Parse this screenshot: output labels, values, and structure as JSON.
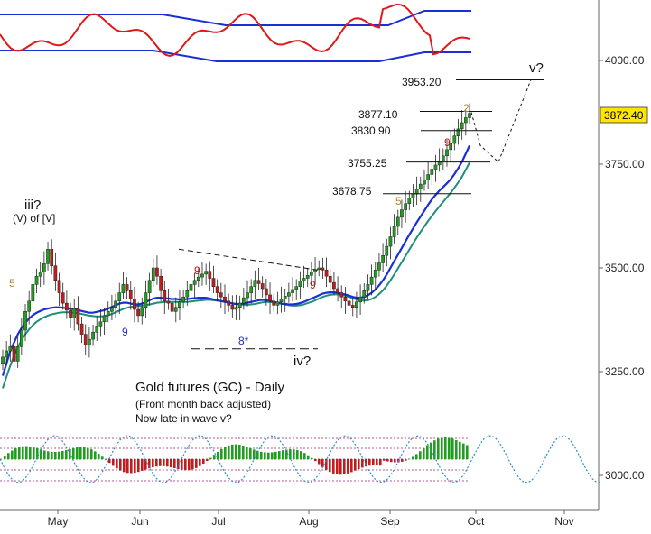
{
  "chart_data": {
    "type": "candlestick",
    "title": "Gold futures (GC) - Daily",
    "subtitle_lines": [
      "(Front month back adjusted)",
      "Now late in wave v?"
    ],
    "x_ticks": [
      "May",
      "Jun",
      "Jul",
      "Aug",
      "Sep",
      "Oct",
      "Nov"
    ],
    "y_ticks": [
      "3000.00",
      "3250.00",
      "3500.00",
      "3750.00",
      "4000.00"
    ],
    "ylim": [
      2925,
      4130
    ],
    "last_price": "3872.40",
    "last_price_color": "#ffe600",
    "up_color": "#1f9e1f",
    "down_color": "#c41c1c",
    "ma_fast_color": "#1a2fd6",
    "ma_slow_color": "#1f8f7a",
    "levels": [
      {
        "label": "3953.20",
        "value": 3953.2
      },
      {
        "label": "3877.10",
        "value": 3877.1
      },
      {
        "label": "3830.90",
        "value": 3830.9
      },
      {
        "label": "3755.25",
        "value": 3755.25
      },
      {
        "label": "3678.75",
        "value": 3678.75
      }
    ],
    "wave_labels": [
      "iii?",
      "(V) of [V]",
      "iv?",
      "v?"
    ],
    "count_labels": [
      {
        "text": "5",
        "color": "#b08a2a"
      },
      {
        "text": "9",
        "color": "#2030c0"
      },
      {
        "text": "9",
        "color": "#c01818"
      },
      {
        "text": "8*",
        "color": "#2030c0"
      },
      {
        "text": "9",
        "color": "#c01818"
      },
      {
        "text": "5",
        "color": "#b08a2a"
      },
      {
        "text": "9",
        "color": "#c01818"
      },
      {
        "text": "2",
        "color": "#b08a2a"
      }
    ],
    "series": [
      {
        "name": "Close",
        "values": [
          3285,
          3300,
          3310,
          3275,
          3310,
          3350,
          3395,
          3420,
          3460,
          3480,
          3490,
          3510,
          3545,
          3505,
          3470,
          3440,
          3415,
          3398,
          3380,
          3402,
          3365,
          3340,
          3315,
          3328,
          3345,
          3360,
          3370,
          3385,
          3395,
          3405,
          3420,
          3440,
          3460,
          3445,
          3425,
          3400,
          3385,
          3405,
          3440,
          3470,
          3500,
          3480,
          3445,
          3420,
          3415,
          3395,
          3405,
          3418,
          3430,
          3445,
          3460,
          3470,
          3478,
          3485,
          3492,
          3475,
          3455,
          3440,
          3430,
          3420,
          3410,
          3400,
          3405,
          3415,
          3428,
          3440,
          3455,
          3470,
          3462,
          3450,
          3435,
          3420,
          3410,
          3418,
          3425,
          3432,
          3440,
          3448,
          3455,
          3468,
          3475,
          3482,
          3490,
          3496,
          3500,
          3495,
          3480,
          3465,
          3450,
          3440,
          3430,
          3420,
          3410,
          3405,
          3418,
          3430,
          3445,
          3460,
          3478,
          3495,
          3512,
          3530,
          3552,
          3575,
          3600,
          3622,
          3640,
          3655,
          3668,
          3678,
          3690,
          3702,
          3712,
          3725,
          3738,
          3748,
          3758,
          3770,
          3785,
          3800,
          3818,
          3835,
          3850,
          3862,
          3872.4
        ]
      },
      {
        "name": "MA fast",
        "values": [
          3240,
          3270,
          3300,
          3320,
          3340,
          3355,
          3368,
          3378,
          3386,
          3392,
          3396,
          3400,
          3402,
          3404,
          3405,
          3405,
          3404,
          3403,
          3402,
          3400,
          3398,
          3396,
          3394,
          3392,
          3392,
          3394,
          3396,
          3398,
          3402,
          3406,
          3410,
          3414,
          3416,
          3416,
          3414,
          3412,
          3412,
          3414,
          3418,
          3422,
          3426,
          3428,
          3428,
          3427,
          3426,
          3425,
          3425,
          3424,
          3424,
          3425,
          3426,
          3427,
          3428,
          3428,
          3428,
          3426,
          3424,
          3422,
          3420,
          3418,
          3416,
          3414,
          3413,
          3413,
          3414,
          3416,
          3418,
          3420,
          3422,
          3423,
          3422,
          3420,
          3418,
          3416,
          3414,
          3413,
          3412,
          3412,
          3413,
          3415,
          3418,
          3422,
          3426,
          3430,
          3434,
          3438,
          3440,
          3441,
          3441,
          3440,
          3438,
          3436,
          3433,
          3430,
          3428,
          3428,
          3430,
          3434,
          3440,
          3448,
          3458,
          3470,
          3484,
          3500,
          3516,
          3532,
          3548,
          3564,
          3580,
          3595,
          3610,
          3624,
          3638,
          3652,
          3665,
          3676,
          3686,
          3695,
          3704,
          3714,
          3726,
          3740,
          3756,
          3775,
          3795
        ]
      },
      {
        "name": "MA slow",
        "values": [
          3210,
          3238,
          3264,
          3288,
          3308,
          3326,
          3340,
          3352,
          3362,
          3370,
          3376,
          3381,
          3385,
          3388,
          3390,
          3392,
          3393,
          3393,
          3393,
          3392,
          3391,
          3389,
          3387,
          3385,
          3384,
          3383,
          3383,
          3384,
          3386,
          3389,
          3393,
          3397,
          3401,
          3404,
          3406,
          3407,
          3408,
          3409,
          3410,
          3412,
          3414,
          3416,
          3417,
          3418,
          3418,
          3418,
          3418,
          3418,
          3418,
          3418,
          3419,
          3420,
          3421,
          3422,
          3423,
          3423,
          3422,
          3421,
          3420,
          3419,
          3417,
          3415,
          3413,
          3412,
          3411,
          3411,
          3412,
          3413,
          3415,
          3417,
          3418,
          3418,
          3417,
          3416,
          3414,
          3412,
          3410,
          3409,
          3409,
          3410,
          3412,
          3415,
          3418,
          3422,
          3426,
          3430,
          3433,
          3435,
          3436,
          3436,
          3435,
          3433,
          3430,
          3427,
          3424,
          3422,
          3421,
          3422,
          3425,
          3430,
          3437,
          3446,
          3457,
          3470,
          3484,
          3499,
          3514,
          3529,
          3544,
          3559,
          3573,
          3587,
          3600,
          3613,
          3625,
          3637,
          3648,
          3659,
          3670,
          3681,
          3693,
          3706,
          3720,
          3736,
          3754
        ]
      }
    ],
    "projection": [
      3875,
      3795,
      3755,
      3953.2
    ],
    "oscillator": {
      "top_line_color": "#1a2fd6",
      "fast_color": "#e01818",
      "mid_color": "#1a2fd6"
    }
  }
}
